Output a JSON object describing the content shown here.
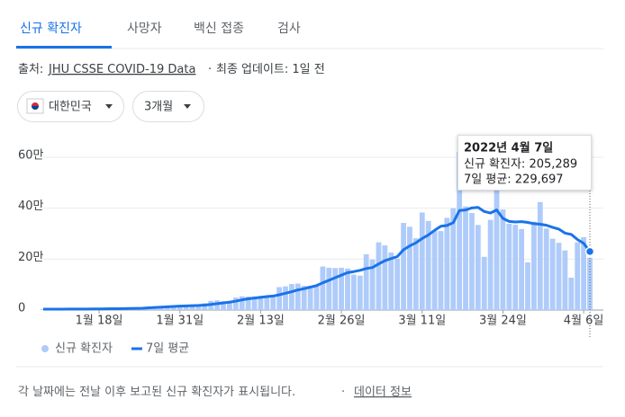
{
  "tabs": [
    "신규 확진자",
    "사망자",
    "백신 접종",
    "검사"
  ],
  "source": {
    "label": "출처:",
    "link": "JHU CSSE COVID-19 Data",
    "separator": "·",
    "updated": "최종 업데이트: 1일 전"
  },
  "filters": {
    "region": "대한민국",
    "period": "3개월"
  },
  "chart_data": {
    "type": "bar",
    "categories": [
      null,
      null,
      null,
      null,
      null,
      null,
      null,
      null,
      null,
      "1월 18일",
      null,
      null,
      null,
      null,
      null,
      null,
      null,
      null,
      null,
      null,
      null,
      null,
      "1월 31일",
      null,
      null,
      null,
      null,
      null,
      null,
      null,
      null,
      null,
      null,
      null,
      null,
      "2월 13일",
      null,
      null,
      null,
      null,
      null,
      null,
      null,
      null,
      null,
      null,
      null,
      null,
      "2월 26일",
      null,
      null,
      null,
      null,
      null,
      null,
      null,
      null,
      null,
      null,
      null,
      null,
      "3월 11일",
      null,
      null,
      null,
      null,
      null,
      null,
      null,
      null,
      null,
      null,
      null,
      null,
      "3월 24일",
      null,
      null,
      null,
      null,
      null,
      null,
      null,
      null,
      null,
      null,
      null,
      null,
      "4월 6일",
      null
    ],
    "series": [
      {
        "name": "신규 확진자",
        "type": "bar",
        "color": "#aecbfa",
        "values": [
          3400,
          3000,
          3100,
          4300,
          4500,
          4100,
          4500,
          4200,
          3900,
          5500,
          6600,
          6800,
          7000,
          7000,
          7600,
          8000,
          8500,
          13000,
          14500,
          16000,
          17500,
          18000,
          17000,
          18000,
          20000,
          22000,
          27000,
          36000,
          38000,
          35000,
          36000,
          49000,
          54000,
          53000,
          54000,
          56000,
          55000,
          57000,
          90000,
          93000,
          102000,
          104000,
          95000,
          95000,
          99000,
          171000,
          166000,
          165000,
          166000,
          163000,
          139000,
          135000,
          219000,
          198000,
          266000,
          254000,
          226000,
          202000,
          342000,
          327000,
          282000,
          383000,
          350000,
          310000,
          310000,
          362000,
          400000,
          621000,
          407000,
          381000,
          334000,
          209000,
          354000,
          491000,
          395000,
          339000,
          335000,
          318000,
          187000,
          347000,
          424000,
          320000,
          280000,
          264000,
          234000,
          127000,
          266000,
          286000,
          205289
        ]
      },
      {
        "name": "7일 평균",
        "type": "line",
        "color": "#1a73e8",
        "values": [
          3600,
          3600,
          3600,
          3700,
          3800,
          3900,
          4000,
          4100,
          4200,
          4400,
          4700,
          5100,
          5500,
          5900,
          6400,
          6800,
          7200,
          9000,
          10200,
          11600,
          13000,
          14100,
          15400,
          16300,
          17300,
          18000,
          19500,
          22000,
          25000,
          28000,
          31000,
          35000,
          40000,
          44000,
          47000,
          50000,
          53000,
          55000,
          60000,
          66000,
          72000,
          79000,
          84000,
          90000,
          96000,
          107000,
          117000,
          127000,
          137000,
          147000,
          151000,
          156000,
          163000,
          167000,
          181000,
          194000,
          202000,
          210000,
          237000,
          252000,
          264000,
          281000,
          295000,
          313000,
          329000,
          332000,
          343000,
          391000,
          393000,
          401000,
          403000,
          387000,
          381000,
          393000,
          360000,
          348000,
          346000,
          347000,
          344000,
          339000,
          337000,
          333000,
          325000,
          318000,
          302000,
          297000,
          277000,
          262000,
          229697
        ]
      }
    ],
    "ylim": [
      0,
      650000
    ],
    "yticks": [
      0,
      {
        "value": 200000,
        "label": "20만"
      },
      {
        "value": 400000,
        "label": "40만"
      },
      {
        "value": 600000,
        "label": "60만"
      }
    ],
    "grid": true,
    "legend": "bottom-left",
    "tooltip": {
      "title": "2022년 4월 7일",
      "lines": [
        "신규 확진자: 205,289",
        "7일 평균: 229,697"
      ]
    }
  },
  "footer": {
    "note": "각 날짜에는 전날 이후 보고된 신규 확진자가 표시됩니다.",
    "separator": "·",
    "link": "데이터 정보"
  }
}
